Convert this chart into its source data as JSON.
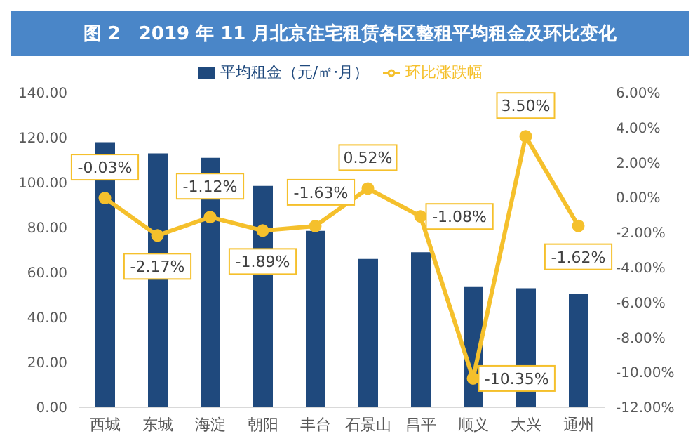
{
  "chart_data": {
    "type": "bar",
    "title": "图 2　2019 年 11 月北京住宅租赁各区整租平均租金及环比变化",
    "categories": [
      "西城",
      "东城",
      "海淀",
      "朝阳",
      "丰台",
      "石景山",
      "昌平",
      "顺义",
      "大兴",
      "通州"
    ],
    "series": [
      {
        "name": "平均租金（元/㎡·月）",
        "color": "#1f497d",
        "values": [
          118,
          113,
          111,
          98.5,
          78.5,
          66,
          69,
          53.5,
          53,
          50.5
        ]
      },
      {
        "name": "环比涨跌幅",
        "type": "line",
        "axis": "y2",
        "color": "#f5c02c",
        "marker": "circle",
        "values": [
          -0.03,
          -2.17,
          -1.12,
          -1.89,
          -1.63,
          0.52,
          -1.08,
          -10.35,
          3.5,
          -1.62
        ],
        "value_labels": [
          "-0.03%",
          "-2.17%",
          "-1.12%",
          "-1.89%",
          "-1.63%",
          "0.52%",
          "-1.08%",
          "-10.35%",
          "3.50%",
          "-1.62%"
        ]
      }
    ],
    "ylim": [
      0,
      140
    ],
    "yticks": [
      {
        "value": 0,
        "label": "0.00"
      },
      {
        "value": 20,
        "label": "20.00"
      },
      {
        "value": 40,
        "label": "40.00"
      },
      {
        "value": 60,
        "label": "60.00"
      },
      {
        "value": 80,
        "label": "80.00"
      },
      {
        "value": 100,
        "label": "100.00"
      },
      {
        "value": 120,
        "label": "120.00"
      },
      {
        "value": 140,
        "label": "140.00"
      }
    ],
    "y2lim": [
      -12,
      6
    ],
    "y2ticks": [
      {
        "value": -12,
        "label": "-12.00%"
      },
      {
        "value": -10,
        "label": "-10.00%"
      },
      {
        "value": -8,
        "label": "-8.00%"
      },
      {
        "value": -6,
        "label": "-6.00%"
      },
      {
        "value": -4,
        "label": "-4.00%"
      },
      {
        "value": -2,
        "label": "-2.00%"
      },
      {
        "value": 0,
        "label": "0.00%"
      },
      {
        "value": 2,
        "label": "2.00%"
      },
      {
        "value": 4,
        "label": "4.00%"
      },
      {
        "value": 6,
        "label": "6.00%"
      }
    ],
    "legend": "top",
    "grid": false
  }
}
